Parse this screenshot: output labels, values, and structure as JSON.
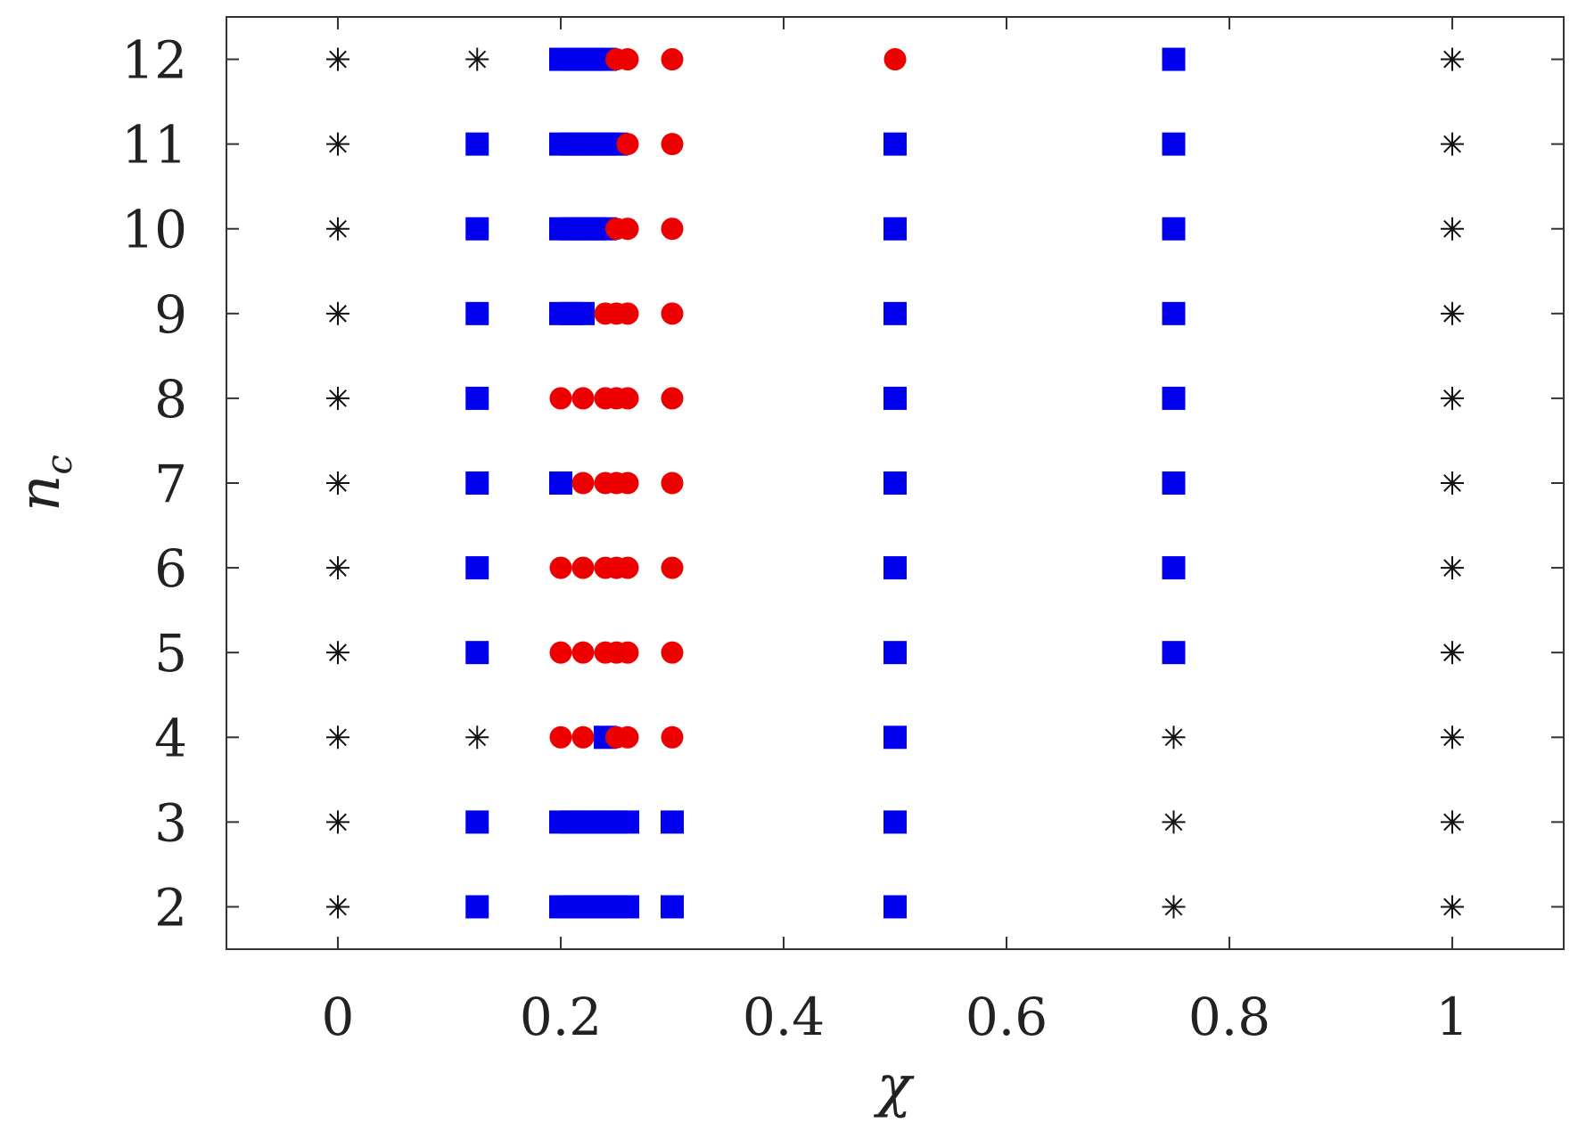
{
  "chart_data": {
    "type": "scatter",
    "title": "",
    "xlabel": "χ",
    "ylabel": {
      "base": "n",
      "sub": "c"
    },
    "xlim": [
      -0.1,
      1.1
    ],
    "ylim": [
      1.5,
      12.5
    ],
    "xticks": [
      0,
      0.2,
      0.4,
      0.6,
      0.8,
      1
    ],
    "xtick_labels": [
      "0",
      "0.2",
      "0.4",
      "0.6",
      "0.8",
      "1"
    ],
    "yticks": [
      2,
      3,
      4,
      5,
      6,
      7,
      8,
      9,
      10,
      11,
      12
    ],
    "ytick_labels": [
      "2",
      "3",
      "4",
      "5",
      "6",
      "7",
      "8",
      "9",
      "10",
      "11",
      "12"
    ],
    "grid": false,
    "legend": "none",
    "series": [
      {
        "marker": "asterisk",
        "color": "#111111",
        "points": [
          [
            0,
            2
          ],
          [
            0,
            3
          ],
          [
            0,
            4
          ],
          [
            0,
            5
          ],
          [
            0,
            6
          ],
          [
            0,
            7
          ],
          [
            0,
            8
          ],
          [
            0,
            9
          ],
          [
            0,
            10
          ],
          [
            0,
            11
          ],
          [
            0,
            12
          ],
          [
            0.125,
            4
          ],
          [
            0.125,
            12
          ],
          [
            0.75,
            2
          ],
          [
            0.75,
            3
          ],
          [
            0.75,
            4
          ],
          [
            1,
            2
          ],
          [
            1,
            3
          ],
          [
            1,
            4
          ],
          [
            1,
            5
          ],
          [
            1,
            6
          ],
          [
            1,
            7
          ],
          [
            1,
            8
          ],
          [
            1,
            9
          ],
          [
            1,
            10
          ],
          [
            1,
            11
          ],
          [
            1,
            12
          ]
        ]
      },
      {
        "marker": "square",
        "color": "#0000ee",
        "points": [
          [
            0.125,
            2
          ],
          [
            0.125,
            3
          ],
          [
            0.125,
            5
          ],
          [
            0.125,
            6
          ],
          [
            0.125,
            7
          ],
          [
            0.125,
            8
          ],
          [
            0.125,
            9
          ],
          [
            0.125,
            10
          ],
          [
            0.125,
            11
          ],
          [
            0.2,
            2
          ],
          [
            0.21,
            2
          ],
          [
            0.22,
            2
          ],
          [
            0.23,
            2
          ],
          [
            0.24,
            2
          ],
          [
            0.25,
            2
          ],
          [
            0.26,
            2
          ],
          [
            0.2,
            3
          ],
          [
            0.21,
            3
          ],
          [
            0.22,
            3
          ],
          [
            0.23,
            3
          ],
          [
            0.24,
            3
          ],
          [
            0.25,
            3
          ],
          [
            0.26,
            3
          ],
          [
            0.24,
            4
          ],
          [
            0.2,
            7
          ],
          [
            0.2,
            9
          ],
          [
            0.21,
            9
          ],
          [
            0.22,
            9
          ],
          [
            0.2,
            10
          ],
          [
            0.21,
            10
          ],
          [
            0.22,
            10
          ],
          [
            0.23,
            10
          ],
          [
            0.24,
            10
          ],
          [
            0.2,
            11
          ],
          [
            0.21,
            11
          ],
          [
            0.22,
            11
          ],
          [
            0.23,
            11
          ],
          [
            0.24,
            11
          ],
          [
            0.25,
            11
          ],
          [
            0.2,
            12
          ],
          [
            0.21,
            12
          ],
          [
            0.22,
            12
          ],
          [
            0.23,
            12
          ],
          [
            0.24,
            12
          ],
          [
            0.3,
            2
          ],
          [
            0.3,
            3
          ],
          [
            0.5,
            2
          ],
          [
            0.5,
            3
          ],
          [
            0.5,
            4
          ],
          [
            0.5,
            5
          ],
          [
            0.5,
            6
          ],
          [
            0.5,
            7
          ],
          [
            0.5,
            8
          ],
          [
            0.5,
            9
          ],
          [
            0.5,
            10
          ],
          [
            0.5,
            11
          ],
          [
            0.75,
            5
          ],
          [
            0.75,
            6
          ],
          [
            0.75,
            7
          ],
          [
            0.75,
            8
          ],
          [
            0.75,
            9
          ],
          [
            0.75,
            10
          ],
          [
            0.75,
            11
          ],
          [
            0.75,
            12
          ]
        ]
      },
      {
        "marker": "circle",
        "color": "#ee0000",
        "points": [
          [
            0.2,
            4
          ],
          [
            0.22,
            4
          ],
          [
            0.25,
            4
          ],
          [
            0.26,
            4
          ],
          [
            0.3,
            4
          ],
          [
            0.2,
            5
          ],
          [
            0.22,
            5
          ],
          [
            0.24,
            5
          ],
          [
            0.25,
            5
          ],
          [
            0.26,
            5
          ],
          [
            0.3,
            5
          ],
          [
            0.2,
            6
          ],
          [
            0.22,
            6
          ],
          [
            0.24,
            6
          ],
          [
            0.25,
            6
          ],
          [
            0.26,
            6
          ],
          [
            0.3,
            6
          ],
          [
            0.22,
            7
          ],
          [
            0.24,
            7
          ],
          [
            0.25,
            7
          ],
          [
            0.26,
            7
          ],
          [
            0.3,
            7
          ],
          [
            0.2,
            8
          ],
          [
            0.22,
            8
          ],
          [
            0.24,
            8
          ],
          [
            0.25,
            8
          ],
          [
            0.26,
            8
          ],
          [
            0.3,
            8
          ],
          [
            0.24,
            9
          ],
          [
            0.25,
            9
          ],
          [
            0.26,
            9
          ],
          [
            0.3,
            9
          ],
          [
            0.25,
            10
          ],
          [
            0.26,
            10
          ],
          [
            0.3,
            10
          ],
          [
            0.26,
            11
          ],
          [
            0.3,
            11
          ],
          [
            0.25,
            12
          ],
          [
            0.26,
            12
          ],
          [
            0.3,
            12
          ],
          [
            0.5,
            12
          ]
        ]
      }
    ]
  }
}
